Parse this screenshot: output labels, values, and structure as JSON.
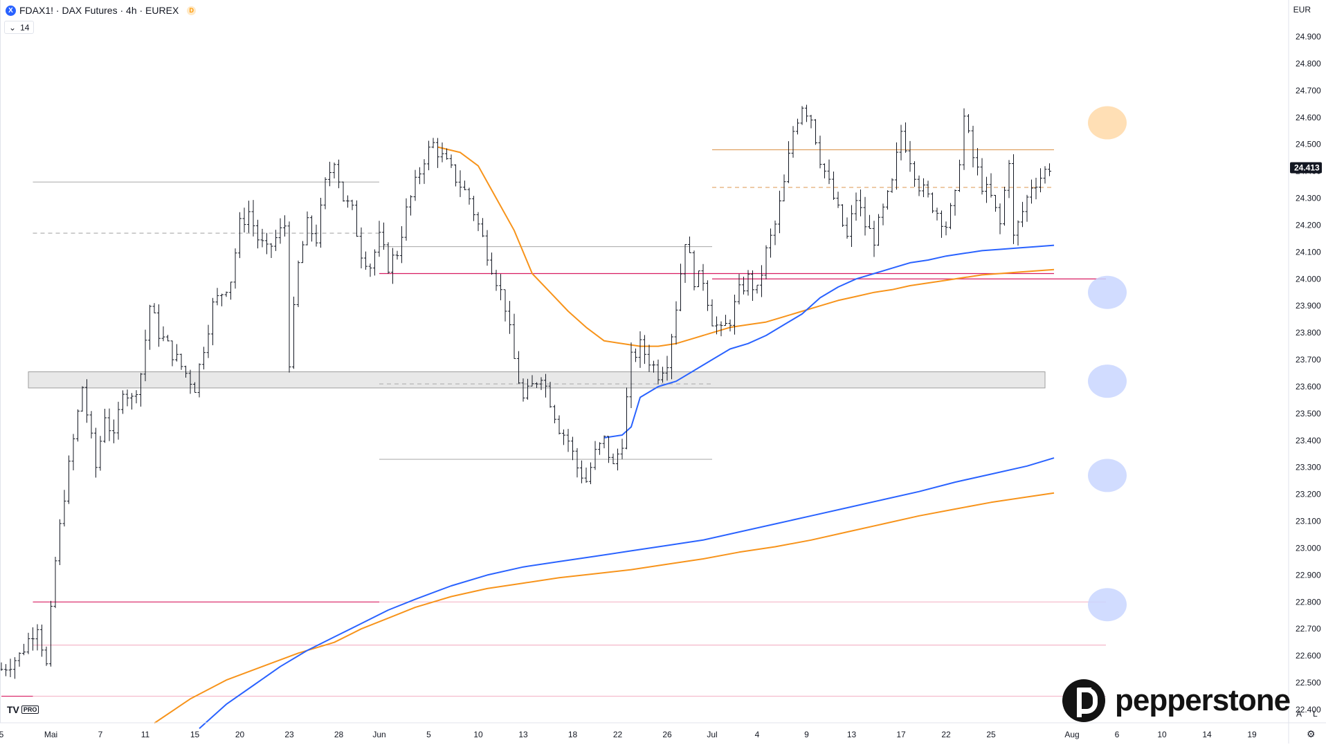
{
  "header": {
    "symbol_badge": "X",
    "title": "FDAX1! · DAX Futures · 4h · EUREX",
    "data_badge": "D",
    "indicator_toggle": "14",
    "currency": "EUR"
  },
  "branding": {
    "tv_logo": "TV",
    "tv_pro": "PRO",
    "pepperstone": "pepperstone"
  },
  "corner_buttons": {
    "auto": "A",
    "log": "L"
  },
  "chart_data": {
    "type": "ohlc",
    "y_axis": {
      "ticks": [
        22400,
        22500,
        22600,
        22700,
        22800,
        22900,
        23000,
        23100,
        23200,
        23300,
        23400,
        23500,
        23600,
        23700,
        23800,
        23900,
        24000,
        24100,
        24200,
        24300,
        24400,
        24500,
        24600,
        24700,
        24800,
        24900
      ],
      "tick_labels": [
        "22.400",
        "22.500",
        "22.600",
        "22.700",
        "22.800",
        "22.900",
        "23.000",
        "23.100",
        "23.200",
        "23.300",
        "23.400",
        "23.500",
        "23.600",
        "23.700",
        "23.800",
        "23.900",
        "24.000",
        "24.100",
        "24.200",
        "24.300",
        "24.400",
        "24.500",
        "24.600",
        "24.700",
        "24.800",
        "24.900"
      ],
      "range": [
        22330,
        25020
      ]
    },
    "x_axis": {
      "ticks": [
        {
          "label": "5",
          "index": 0
        },
        {
          "label": "Mai",
          "index": 11
        },
        {
          "label": "7",
          "index": 22
        },
        {
          "label": "11",
          "index": 32
        },
        {
          "label": "15",
          "index": 43
        },
        {
          "label": "20",
          "index": 53
        },
        {
          "label": "23",
          "index": 64
        },
        {
          "label": "28",
          "index": 75
        },
        {
          "label": "Jun",
          "index": 84
        },
        {
          "label": "5",
          "index": 95
        },
        {
          "label": "10",
          "index": 106
        },
        {
          "label": "13",
          "index": 116
        },
        {
          "label": "18",
          "index": 127
        },
        {
          "label": "22",
          "index": 137
        },
        {
          "label": "26",
          "index": 148
        },
        {
          "label": "Jul",
          "index": 158
        },
        {
          "label": "4",
          "index": 168
        },
        {
          "label": "9",
          "index": 179
        },
        {
          "label": "13",
          "index": 189
        },
        {
          "label": "17",
          "index": 200
        },
        {
          "label": "22",
          "index": 210
        },
        {
          "label": "25",
          "index": 220
        },
        {
          "label": "Aug",
          "index": 238
        },
        {
          "label": "6",
          "index": 248
        },
        {
          "label": "10",
          "index": 258
        },
        {
          "label": "14",
          "index": 268
        },
        {
          "label": "19",
          "index": 278
        }
      ]
    },
    "last_price": 24413,
    "last_price_label": "24.413",
    "series": [
      {
        "name": "",
        "color": "#f7931a",
        "kind": "ma-fast",
        "points": [
          [
            97,
            24490
          ],
          [
            102,
            24470
          ],
          [
            106,
            24420
          ],
          [
            110,
            24300
          ],
          [
            114,
            24180
          ],
          [
            118,
            24020
          ],
          [
            122,
            23950
          ],
          [
            126,
            23880
          ],
          [
            130,
            23820
          ],
          [
            134,
            23770
          ],
          [
            138,
            23760
          ],
          [
            142,
            23750
          ],
          [
            146,
            23750
          ],
          [
            150,
            23760
          ],
          [
            154,
            23780
          ],
          [
            158,
            23800
          ],
          [
            162,
            23820
          ],
          [
            166,
            23830
          ],
          [
            170,
            23840
          ],
          [
            174,
            23860
          ],
          [
            178,
            23880
          ],
          [
            182,
            23900
          ],
          [
            186,
            23920
          ],
          [
            190,
            23935
          ],
          [
            194,
            23950
          ],
          [
            198,
            23960
          ],
          [
            202,
            23975
          ],
          [
            206,
            23985
          ],
          [
            210,
            23995
          ],
          [
            214,
            24005
          ],
          [
            218,
            24015
          ],
          [
            222,
            24020
          ],
          [
            226,
            24025
          ],
          [
            230,
            24030
          ],
          [
            234,
            24035
          ]
        ]
      },
      {
        "name": "",
        "color": "#2962ff",
        "kind": "ma-fast",
        "points": [
          [
            134,
            23410
          ],
          [
            138,
            23420
          ],
          [
            140,
            23450
          ],
          [
            142,
            23560
          ],
          [
            146,
            23600
          ],
          [
            150,
            23620
          ],
          [
            154,
            23660
          ],
          [
            158,
            23700
          ],
          [
            162,
            23740
          ],
          [
            166,
            23760
          ],
          [
            170,
            23790
          ],
          [
            174,
            23830
          ],
          [
            178,
            23870
          ],
          [
            182,
            23930
          ],
          [
            186,
            23970
          ],
          [
            190,
            24000
          ],
          [
            194,
            24020
          ],
          [
            198,
            24040
          ],
          [
            202,
            24060
          ],
          [
            206,
            24070
          ],
          [
            210,
            24085
          ],
          [
            214,
            24095
          ],
          [
            218,
            24105
          ],
          [
            222,
            24110
          ],
          [
            226,
            24115
          ],
          [
            230,
            24120
          ],
          [
            234,
            24125
          ]
        ]
      },
      {
        "name": "",
        "color": "#f7931a",
        "kind": "ma-slow",
        "points": [
          [
            34,
            22350
          ],
          [
            42,
            22440
          ],
          [
            50,
            22510
          ],
          [
            58,
            22560
          ],
          [
            66,
            22610
          ],
          [
            74,
            22650
          ],
          [
            80,
            22700
          ],
          [
            86,
            22740
          ],
          [
            92,
            22780
          ],
          [
            100,
            22820
          ],
          [
            108,
            22850
          ],
          [
            116,
            22870
          ],
          [
            124,
            22890
          ],
          [
            132,
            22905
          ],
          [
            140,
            22920
          ],
          [
            148,
            22940
          ],
          [
            156,
            22960
          ],
          [
            164,
            22985
          ],
          [
            172,
            23005
          ],
          [
            180,
            23030
          ],
          [
            188,
            23060
          ],
          [
            196,
            23090
          ],
          [
            204,
            23120
          ],
          [
            212,
            23145
          ],
          [
            220,
            23170
          ],
          [
            228,
            23190
          ],
          [
            234,
            23205
          ]
        ]
      },
      {
        "name": "",
        "color": "#2962ff",
        "kind": "ma-slow",
        "points": [
          [
            44,
            22330
          ],
          [
            50,
            22420
          ],
          [
            56,
            22490
          ],
          [
            62,
            22560
          ],
          [
            68,
            22620
          ],
          [
            74,
            22670
          ],
          [
            80,
            22720
          ],
          [
            86,
            22770
          ],
          [
            92,
            22810
          ],
          [
            100,
            22860
          ],
          [
            108,
            22900
          ],
          [
            116,
            22930
          ],
          [
            124,
            22950
          ],
          [
            132,
            22970
          ],
          [
            140,
            22990
          ],
          [
            148,
            23010
          ],
          [
            156,
            23030
          ],
          [
            164,
            23060
          ],
          [
            172,
            23090
          ],
          [
            180,
            23120
          ],
          [
            188,
            23150
          ],
          [
            196,
            23180
          ],
          [
            204,
            23210
          ],
          [
            212,
            23245
          ],
          [
            220,
            23275
          ],
          [
            228,
            23305
          ],
          [
            234,
            23335
          ]
        ]
      }
    ],
    "ohlc_path": [
      [
        0,
        22550
      ],
      [
        4,
        22600
      ],
      [
        8,
        22720
      ],
      [
        10,
        22560
      ],
      [
        12,
        22950
      ],
      [
        14,
        23200
      ],
      [
        16,
        23400
      ],
      [
        18,
        23600
      ],
      [
        19,
        23500
      ],
      [
        21,
        23300
      ],
      [
        23,
        23500
      ],
      [
        25,
        23400
      ],
      [
        27,
        23600
      ],
      [
        29,
        23550
      ],
      [
        31,
        23650
      ],
      [
        33,
        23900
      ],
      [
        35,
        23800
      ],
      [
        37,
        23750
      ],
      [
        39,
        23700
      ],
      [
        41,
        23650
      ],
      [
        43,
        23600
      ],
      [
        45,
        23750
      ],
      [
        47,
        23900
      ],
      [
        49,
        23950
      ],
      [
        51,
        24000
      ],
      [
        53,
        24200
      ],
      [
        55,
        24250
      ],
      [
        57,
        24150
      ],
      [
        59,
        24100
      ],
      [
        61,
        24150
      ],
      [
        63,
        24200
      ],
      [
        64,
        23700
      ],
      [
        66,
        24050
      ],
      [
        68,
        24200
      ],
      [
        70,
        24150
      ],
      [
        72,
        24350
      ],
      [
        74,
        24450
      ],
      [
        76,
        24300
      ],
      [
        78,
        24250
      ],
      [
        80,
        24100
      ],
      [
        82,
        24050
      ],
      [
        84,
        24150
      ],
      [
        86,
        24050
      ],
      [
        88,
        24100
      ],
      [
        90,
        24250
      ],
      [
        92,
        24350
      ],
      [
        94,
        24450
      ],
      [
        96,
        24500
      ],
      [
        98,
        24450
      ],
      [
        100,
        24400
      ],
      [
        102,
        24350
      ],
      [
        104,
        24300
      ],
      [
        106,
        24200
      ],
      [
        108,
        24100
      ],
      [
        110,
        24000
      ],
      [
        112,
        23900
      ],
      [
        114,
        23700
      ],
      [
        116,
        23550
      ],
      [
        118,
        23600
      ],
      [
        120,
        23650
      ],
      [
        122,
        23550
      ],
      [
        124,
        23450
      ],
      [
        126,
        23400
      ],
      [
        128,
        23300
      ],
      [
        130,
        23250
      ],
      [
        132,
        23350
      ],
      [
        134,
        23400
      ],
      [
        136,
        23300
      ],
      [
        138,
        23400
      ],
      [
        140,
        23700
      ],
      [
        142,
        23750
      ],
      [
        144,
        23700
      ],
      [
        146,
        23650
      ],
      [
        148,
        23700
      ],
      [
        150,
        23900
      ],
      [
        152,
        24150
      ],
      [
        154,
        24000
      ],
      [
        156,
        24000
      ],
      [
        158,
        23850
      ],
      [
        160,
        23800
      ],
      [
        162,
        23850
      ],
      [
        164,
        23950
      ],
      [
        166,
        24000
      ],
      [
        168,
        23950
      ],
      [
        170,
        24100
      ],
      [
        172,
        24200
      ],
      [
        174,
        24350
      ],
      [
        176,
        24550
      ],
      [
        178,
        24650
      ],
      [
        180,
        24600
      ],
      [
        182,
        24450
      ],
      [
        184,
        24350
      ],
      [
        186,
        24250
      ],
      [
        188,
        24150
      ],
      [
        190,
        24300
      ],
      [
        192,
        24200
      ],
      [
        194,
        24150
      ],
      [
        196,
        24250
      ],
      [
        198,
        24350
      ],
      [
        200,
        24550
      ],
      [
        202,
        24450
      ],
      [
        204,
        24350
      ],
      [
        206,
        24300
      ],
      [
        208,
        24250
      ],
      [
        210,
        24200
      ],
      [
        212,
        24300
      ],
      [
        214,
        24600
      ],
      [
        216,
        24450
      ],
      [
        218,
        24350
      ],
      [
        220,
        24300
      ],
      [
        222,
        24200
      ],
      [
        224,
        24450
      ],
      [
        225,
        24150
      ],
      [
        227,
        24250
      ],
      [
        229,
        24350
      ],
      [
        231,
        24380
      ],
      [
        233,
        24420
      ]
    ],
    "hlines": [
      {
        "price": 24360,
        "from": 7,
        "to": 84,
        "style": "solid",
        "color": "#b0b0b0"
      },
      {
        "price": 24170,
        "from": 7,
        "to": 84,
        "style": "dashed",
        "color": "#b0b0b0"
      },
      {
        "price": 24120,
        "from": 84,
        "to": 158,
        "style": "solid",
        "color": "#b0b0b0"
      },
      {
        "price": 24020,
        "from": 84,
        "to": 158,
        "style": "solid",
        "color": "#d81b60"
      },
      {
        "price": 23330,
        "from": 84,
        "to": 158,
        "style": "solid",
        "color": "#b0b0b0"
      },
      {
        "price": 23610,
        "from": 84,
        "to": 158,
        "style": "dashed",
        "color": "#b0b0b0"
      },
      {
        "price": 24480,
        "from": 158,
        "to": 234,
        "style": "solid",
        "color": "#e0a060"
      },
      {
        "price": 24340,
        "from": 158,
        "to": 234,
        "style": "dashed",
        "color": "#e0a060"
      },
      {
        "price": 24020,
        "from": 158,
        "to": 234,
        "style": "solid",
        "color": "#d81b60"
      },
      {
        "price": 24000,
        "from": 158,
        "to": 240,
        "style": "solid",
        "color": "#d81b60"
      },
      {
        "price": 22800,
        "from": 7,
        "to": 84,
        "style": "solid",
        "color": "#d81b60"
      },
      {
        "price": 22800,
        "from": 84,
        "to": 240,
        "style": "solid",
        "color": "#f4b6c8"
      },
      {
        "price": 22640,
        "from": 7,
        "to": 240,
        "style": "solid",
        "color": "#f4b6c8"
      },
      {
        "price": 22450,
        "from": 0,
        "to": 7,
        "style": "solid",
        "color": "#d81b60"
      },
      {
        "price": 22450,
        "from": 7,
        "to": 240,
        "style": "solid",
        "color": "#f4b6c8"
      }
    ],
    "zone": {
      "from": 6,
      "to": 232,
      "top": 23655,
      "bottom": 23595,
      "color": "#e0e0e0"
    },
    "markers": [
      {
        "price": 24580,
        "color": "#ffd9a8"
      },
      {
        "price": 23950,
        "color": "#c9d6ff"
      },
      {
        "price": 23620,
        "color": "#c9d6ff"
      },
      {
        "price": 23270,
        "color": "#c9d6ff"
      },
      {
        "price": 22790,
        "color": "#c9d6ff"
      }
    ]
  }
}
